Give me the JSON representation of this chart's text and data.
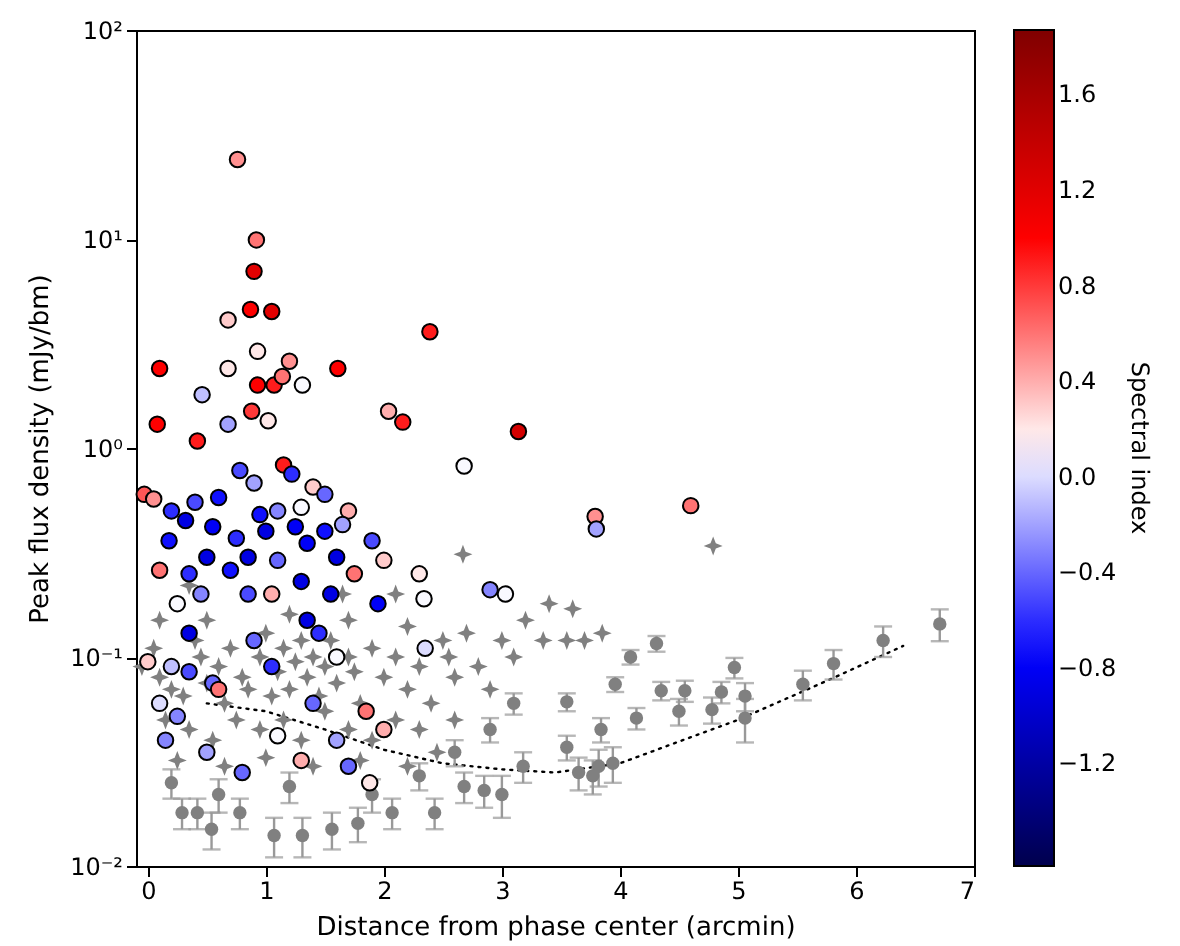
{
  "chart_data": {
    "type": "scatter",
    "xlabel": "Distance from phase center (arcmin)",
    "ylabel": "Peak flux density (mJy/bm)",
    "clabel": "Spectral index",
    "xlim": [
      -0.1,
      7
    ],
    "xticks": [
      0,
      1,
      2,
      3,
      4,
      5,
      6,
      7
    ],
    "ylim": [
      0.01,
      100
    ],
    "log": "y",
    "yticks": [
      {
        "value": 0.01,
        "label": "10⁻²"
      },
      {
        "value": 0.1,
        "label": "10⁻¹"
      },
      {
        "value": 1,
        "label": "10⁰"
      },
      {
        "value": 10,
        "label": "10¹"
      },
      {
        "value": 100,
        "label": "10²"
      }
    ],
    "clim": [
      -1.63,
      1.87
    ],
    "cticks": [
      {
        "value": -1.2,
        "label": "−1.2"
      },
      {
        "value": -0.8,
        "label": "−0.8"
      },
      {
        "value": -0.4,
        "label": "−0.4"
      },
      {
        "value": 0,
        "label": "0.0"
      },
      {
        "value": 0.4,
        "label": "0.4"
      },
      {
        "value": 0.8,
        "label": "0.8"
      },
      {
        "value": 1.2,
        "label": "1.2"
      },
      {
        "value": 1.6,
        "label": "1.6"
      }
    ],
    "grid": false,
    "series": [
      {
        "type": "line",
        "line_style": "dotted",
        "marker": "none",
        "color": "#000000",
        "x": [
          0.5,
          1.0,
          1.5,
          2.0,
          2.5,
          3.0,
          3.45,
          4.0,
          5.0,
          5.8,
          6.4
        ],
        "values": [
          0.06,
          0.055,
          0.045,
          0.036,
          0.031,
          0.029,
          0.028,
          0.031,
          0.05,
          0.079,
          0.113
        ]
      },
      {
        "type": "scatter",
        "marker": "star",
        "color": "#808080",
        "x": [
          -0.05,
          0.05,
          0.1,
          0.2,
          0.3,
          0.4,
          0.45,
          0.5,
          0.6,
          0.65,
          0.7,
          0.8,
          0.85,
          0.95,
          1.0,
          1.05,
          1.1,
          1.15,
          1.2,
          1.25,
          1.3,
          1.35,
          1.4,
          1.45,
          1.5,
          1.55,
          1.6,
          1.7,
          1.75,
          1.8,
          1.9,
          2.0,
          2.1,
          2.2,
          2.3,
          2.4,
          2.5,
          2.55,
          2.6,
          2.67,
          2.7,
          2.8,
          2.9,
          3.0,
          3.1,
          3.2,
          3.35,
          3.4,
          3.55,
          3.6,
          3.7,
          3.85,
          4.79,
          0.15,
          0.35,
          0.55,
          0.75,
          0.95,
          1.15,
          1.3,
          1.5,
          1.7,
          1.9,
          2.1,
          2.3,
          2.6,
          0.25,
          0.65,
          1.0,
          1.4,
          1.8,
          2.2,
          2.45,
          0.1,
          0.5,
          1.2,
          1.7,
          2.2,
          0.35,
          1.65,
          2.1
        ],
        "values": [
          0.09,
          0.11,
          0.08,
          0.07,
          0.065,
          0.12,
          0.1,
          0.075,
          0.09,
          0.06,
          0.11,
          0.08,
          0.07,
          0.1,
          0.13,
          0.065,
          0.085,
          0.11,
          0.07,
          0.095,
          0.12,
          0.08,
          0.1,
          0.065,
          0.09,
          0.12,
          0.075,
          0.1,
          0.085,
          0.06,
          0.11,
          0.08,
          0.1,
          0.07,
          0.09,
          0.06,
          0.12,
          0.1,
          0.08,
          0.31,
          0.13,
          0.09,
          0.07,
          0.12,
          0.1,
          0.15,
          0.12,
          0.18,
          0.12,
          0.17,
          0.12,
          0.13,
          0.34,
          0.05,
          0.045,
          0.04,
          0.05,
          0.045,
          0.05,
          0.04,
          0.055,
          0.045,
          0.04,
          0.05,
          0.045,
          0.05,
          0.032,
          0.03,
          0.033,
          0.03,
          0.032,
          0.03,
          0.035,
          0.15,
          0.15,
          0.16,
          0.15,
          0.14,
          0.22,
          0.2,
          0.2
        ]
      },
      {
        "type": "scatter",
        "marker": "circle",
        "color": "#808080",
        "x": [
          6.71,
          6.23,
          5.81,
          5.55,
          4.97,
          5.06,
          5.06,
          4.86,
          4.78,
          4.55,
          4.5,
          4.35,
          4.31,
          4.09,
          3.96,
          4.14,
          3.84,
          3.94,
          3.82,
          3.77,
          3.65,
          3.55,
          3.55,
          3.18,
          3.0,
          1.07,
          0.54,
          0.29,
          0.42,
          1.56,
          1.31,
          0.78,
          1.78,
          2.07,
          2.43,
          2.68,
          2.85,
          0.2,
          0.6,
          1.2,
          1.9,
          2.3,
          2.6,
          2.9,
          3.1
        ],
        "values": [
          0.144,
          0.12,
          0.093,
          0.074,
          0.089,
          0.065,
          0.051,
          0.068,
          0.056,
          0.069,
          0.055,
          0.069,
          0.116,
          0.1,
          0.074,
          0.051,
          0.045,
          0.031,
          0.03,
          0.027,
          0.028,
          0.037,
          0.061,
          0.03,
          0.022,
          0.014,
          0.015,
          0.018,
          0.018,
          0.015,
          0.014,
          0.018,
          0.016,
          0.018,
          0.018,
          0.024,
          0.023,
          0.025,
          0.022,
          0.024,
          0.022,
          0.027,
          0.035,
          0.045,
          0.06
        ],
        "errors": [
          0.025,
          0.02,
          0.015,
          0.012,
          0.01,
          0.01,
          0.012,
          0.008,
          0.008,
          0.008,
          0.008,
          0.007,
          0.01,
          0.008,
          0.006,
          0.006,
          0.006,
          0.006,
          0.006,
          0.005,
          0.005,
          0.005,
          0.006,
          0.005,
          0.005,
          0.003,
          0.003,
          0.003,
          0.003,
          0.003,
          0.003,
          0.003,
          0.003,
          0.003,
          0.003,
          0.004,
          0.004,
          0.004,
          0.004,
          0.004,
          0.004,
          0.004,
          0.005,
          0.006,
          0.007
        ]
      },
      {
        "type": "scatter",
        "marker": "circle",
        "color": "#000000",
        "x": [
          0.76,
          0.92,
          0.9,
          0.87,
          1.05,
          0.68,
          0.93,
          0.1,
          1.61,
          2.39,
          0.68,
          0.93,
          1.07,
          1.2,
          1.14,
          1.31,
          0.46,
          0.88,
          0.08,
          0.42,
          1.02,
          0.68,
          2.04,
          2.16,
          3.14,
          2.68,
          -0.03,
          0.05,
          4.6,
          3.79,
          3.8,
          1.15,
          1.22,
          0.78,
          0.9,
          1.4,
          1.5,
          0.2,
          0.4,
          0.6,
          0.32,
          0.55,
          0.95,
          1.1,
          1.3,
          1.7,
          1.0,
          1.25,
          1.5,
          1.65,
          0.18,
          0.75,
          1.35,
          1.9,
          0.5,
          0.85,
          1.1,
          1.6,
          2.0,
          0.1,
          0.35,
          0.7,
          1.3,
          1.75,
          2.3,
          2.9,
          3.03,
          2.34,
          0.45,
          0.85,
          1.05,
          1.55,
          1.95,
          0.25,
          1.35,
          0.35,
          0.9,
          1.45,
          2.35,
          0.0,
          0.2,
          0.35,
          0.55,
          1.05,
          1.6,
          0.1,
          0.25,
          0.6,
          1.4,
          1.85,
          0.15,
          0.5,
          1.1,
          1.6,
          2.0,
          0.8,
          1.3,
          1.7,
          1.88
        ],
        "values": [
          24,
          9.9,
          7.0,
          4.6,
          4.5,
          4.1,
          2.9,
          2.4,
          2.4,
          3.6,
          2.4,
          2.0,
          2.0,
          2.6,
          2.2,
          2.0,
          1.8,
          1.5,
          1.3,
          1.08,
          1.35,
          1.3,
          1.5,
          1.33,
          1.2,
          0.82,
          0.6,
          0.57,
          0.53,
          0.47,
          0.41,
          0.83,
          0.75,
          0.78,
          0.68,
          0.65,
          0.6,
          0.5,
          0.55,
          0.58,
          0.45,
          0.42,
          0.48,
          0.5,
          0.52,
          0.5,
          0.4,
          0.42,
          0.4,
          0.43,
          0.36,
          0.37,
          0.35,
          0.36,
          0.3,
          0.3,
          0.29,
          0.3,
          0.29,
          0.26,
          0.25,
          0.26,
          0.23,
          0.25,
          0.25,
          0.21,
          0.2,
          0.19,
          0.2,
          0.2,
          0.2,
          0.2,
          0.18,
          0.18,
          0.15,
          0.13,
          0.12,
          0.13,
          0.11,
          0.095,
          0.09,
          0.085,
          0.075,
          0.09,
          0.1,
          0.06,
          0.052,
          0.07,
          0.06,
          0.055,
          0.04,
          0.035,
          0.042,
          0.04,
          0.045,
          0.028,
          0.032,
          0.03,
          0.025
        ],
        "cvalues": [
          0.5,
          0.6,
          1.2,
          1.0,
          1.2,
          0.3,
          0.2,
          1.0,
          1.0,
          0.9,
          0.2,
          1.0,
          0.9,
          0.5,
          0.6,
          0.1,
          -0.1,
          0.8,
          1.0,
          0.9,
          0.2,
          -0.2,
          0.4,
          0.9,
          1.3,
          0.1,
          0.7,
          0.5,
          0.6,
          0.5,
          -0.2,
          0.9,
          -0.6,
          -0.5,
          -0.2,
          0.3,
          -0.4,
          -0.6,
          -0.5,
          -0.7,
          -0.9,
          -0.8,
          -0.7,
          -0.3,
          0.1,
          0.4,
          -0.9,
          -0.8,
          -0.7,
          -0.2,
          -0.7,
          -0.6,
          -0.8,
          -0.5,
          -0.9,
          -0.9,
          -0.4,
          -0.9,
          0.3,
          0.6,
          -0.6,
          -0.7,
          -0.9,
          0.6,
          0.2,
          -0.3,
          0.1,
          0.1,
          -0.3,
          -0.5,
          0.4,
          -0.9,
          -0.8,
          0.1,
          -0.9,
          -0.9,
          -0.4,
          -0.6,
          0.0,
          0.3,
          -0.1,
          -0.5,
          -0.4,
          -0.6,
          0.1,
          0.0,
          -0.3,
          0.6,
          -0.4,
          0.6,
          -0.3,
          -0.2,
          0.1,
          -0.2,
          0.4,
          -0.4,
          0.4,
          -0.4,
          0.2
        ]
      }
    ]
  }
}
